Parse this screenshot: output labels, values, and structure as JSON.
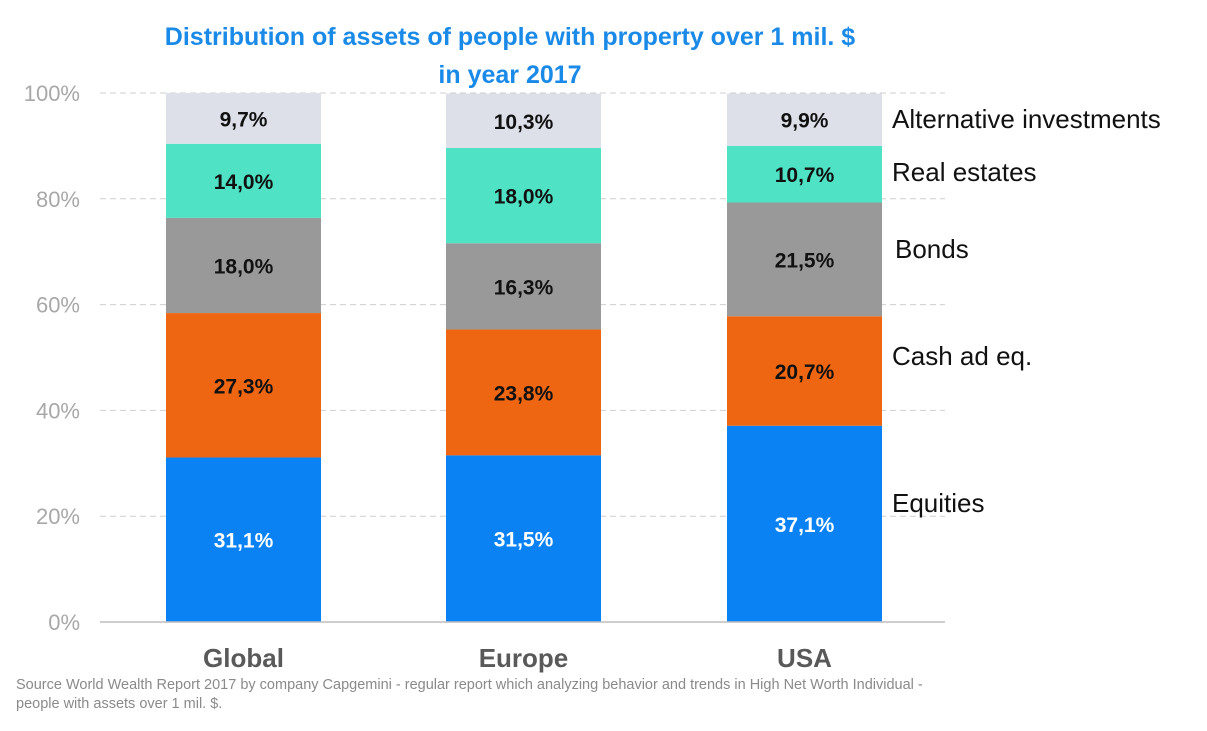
{
  "chart_data": {
    "type": "bar",
    "stacked": true,
    "title": "Distribution of assets of people with property over 1 mil. $",
    "subtitle": "in year 2017",
    "xlabel": "",
    "ylabel": "",
    "ylim": [
      0,
      100
    ],
    "yticks": [
      "0%",
      "20%",
      "40%",
      "60%",
      "80%",
      "100%"
    ],
    "grid": true,
    "legend_placement": "right",
    "categories": [
      "Global",
      "Europe",
      "USA"
    ],
    "series": [
      {
        "name": "Equities",
        "color": "#0a82f4",
        "label_color": "#ffffff",
        "values": [
          31.1,
          31.5,
          37.1
        ],
        "labels": [
          "31,1%",
          "31,5%",
          "37,1%"
        ]
      },
      {
        "name": "Cash ad eq.",
        "color": "#ee6612",
        "label_color": "#111111",
        "values": [
          27.3,
          23.8,
          20.7
        ],
        "labels": [
          "27,3%",
          "23,8%",
          "20,7%"
        ]
      },
      {
        "name": "Bonds",
        "color": "#999999",
        "label_color": "#111111",
        "values": [
          18.0,
          16.3,
          21.5
        ],
        "labels": [
          "18,0%",
          "16,3%",
          "21,5%"
        ]
      },
      {
        "name": "Real estates",
        "color": "#4fe2c4",
        "label_color": "#111111",
        "values": [
          14.0,
          18.0,
          10.7
        ],
        "labels": [
          "14,0%",
          "18,0%",
          "10,7%"
        ]
      },
      {
        "name": "Alternative investments",
        "color": "#dde0e8",
        "label_color": "#111111",
        "values": [
          9.7,
          10.3,
          9.9
        ],
        "labels": [
          "9,7%",
          "10,3%",
          "9,9%"
        ]
      }
    ]
  },
  "source": {
    "line1": "Source World Wealth Report 2017 by company Capgemini - regular report which analyzing behavior and trends in High Net Worth Individual -",
    "line2": "people with assets over 1 mil. $."
  }
}
